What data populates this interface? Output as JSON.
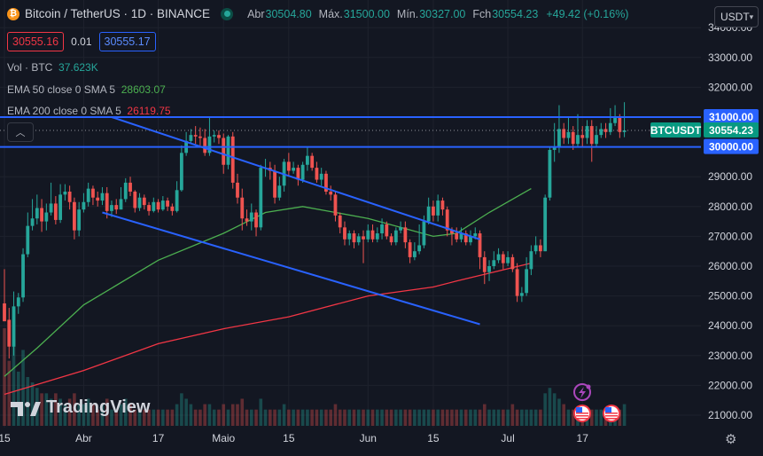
{
  "header": {
    "coin_glyph": "₿",
    "symbol": "Bitcoin / TetherUS · 1D · BINANCE",
    "ohlc": [
      {
        "label": "Abr",
        "value": "30504.80"
      },
      {
        "label": "Máx.",
        "value": "31500.00"
      },
      {
        "label": "Mín.",
        "value": "30327.00"
      },
      {
        "label": "Fch",
        "value": "30554.23"
      }
    ],
    "change": "+49.42 (+0.16%)"
  },
  "trade": {
    "sell": "30555.16",
    "spread": "0.01",
    "buy": "30555.17"
  },
  "indicators": {
    "volume": {
      "name": "Vol · BTC",
      "value": "37.623K",
      "color": "#26a69a"
    },
    "ema50": {
      "name": "EMA 50 close 0 SMA 5",
      "value": "28603.07",
      "color": "#4caf50"
    },
    "ema200": {
      "name": "EMA 200 close 0 SMA 5",
      "value": "26119.75",
      "color": "#f23645"
    }
  },
  "currency_selector": {
    "value": "USDT"
  },
  "branding": {
    "logo_text": "TradingView"
  },
  "chart_data": {
    "type": "candlestick",
    "y_axis": {
      "ticks": [
        "34000.00",
        "33000.00",
        "32000.00",
        "31000.00",
        "30000.00",
        "29000.00",
        "28000.00",
        "27000.00",
        "26000.00",
        "25000.00",
        "24000.00",
        "23000.00",
        "22000.00",
        "21000.00"
      ],
      "range": [
        20700,
        34100
      ]
    },
    "x_axis": {
      "ticks": [
        "15",
        "Abr",
        "17",
        "Maio",
        "15",
        "Jun",
        "15",
        "Jul",
        "17"
      ],
      "tick_dates": [
        "2023-03-15",
        "2023-04-01",
        "2023-04-17",
        "2023-05-01",
        "2023-05-15",
        "2023-06-01",
        "2023-06-15",
        "2023-07-01",
        "2023-07-17"
      ]
    },
    "dates": [
      "2023-03-15",
      "2023-07-06"
    ],
    "horizontal_levels": [
      31000,
      30000
    ],
    "price_labels": [
      {
        "text": "31000.00",
        "kind": "level"
      },
      {
        "text": "BTCUSDT",
        "kind": "symbol"
      },
      {
        "text": "30554.23",
        "kind": "last"
      },
      {
        "text": "30000.00",
        "kind": "level"
      }
    ],
    "trend_channel": [
      {
        "from": {
          "date": "2023-04-07",
          "value": 31000
        },
        "to": {
          "date": "2023-06-25",
          "value": 26900
        }
      },
      {
        "from": {
          "date": "2023-04-05",
          "value": 27800
        },
        "to": {
          "date": "2023-06-25",
          "value": 24050
        }
      }
    ],
    "ohlc": [
      [
        24750,
        24150,
        25900,
        24200
      ],
      [
        24200,
        23300,
        24600,
        22900
      ],
      [
        23300,
        24650,
        25150,
        23000
      ],
      [
        24650,
        24950,
        25100,
        24400
      ],
      [
        24950,
        26400,
        26600,
        24800
      ],
      [
        26400,
        27350,
        27800,
        26300
      ],
      [
        27350,
        27600,
        28250,
        27200
      ],
      [
        27600,
        27950,
        28400,
        27400
      ],
      [
        27950,
        27500,
        28250,
        27150
      ],
      [
        27500,
        27800,
        28100,
        27200
      ],
      [
        27800,
        28100,
        28800,
        27700
      ],
      [
        28100,
        27550,
        28350,
        27400
      ],
      [
        27550,
        28400,
        28750,
        27450
      ],
      [
        28400,
        28500,
        28750,
        28200
      ],
      [
        28500,
        28150,
        28700,
        27900
      ],
      [
        28150,
        27200,
        28300,
        26900
      ],
      [
        27200,
        27900,
        28150,
        27000
      ],
      [
        27900,
        28150,
        28450,
        27800
      ],
      [
        28150,
        28600,
        28800,
        28000
      ],
      [
        28600,
        28300,
        28700,
        28050
      ],
      [
        28300,
        28200,
        28500,
        28000
      ],
      [
        28200,
        28450,
        28650,
        28050
      ],
      [
        28450,
        27850,
        28650,
        27600
      ],
      [
        27850,
        28050,
        28200,
        27650
      ],
      [
        28050,
        27900,
        28250,
        27750
      ],
      [
        27900,
        28250,
        28650,
        27900
      ],
      [
        28250,
        28800,
        28950,
        28150
      ],
      [
        28800,
        28500,
        29000,
        28350
      ],
      [
        28500,
        27950,
        28550,
        27800
      ],
      [
        27950,
        28300,
        28450,
        27850
      ],
      [
        28300,
        28050,
        28400,
        27900
      ],
      [
        28050,
        27850,
        28150,
        27700
      ],
      [
        27850,
        28150,
        28300,
        27800
      ],
      [
        28150,
        27900,
        28250,
        27800
      ],
      [
        27900,
        28200,
        28350,
        27850
      ],
      [
        28200,
        28000,
        28300,
        27850
      ],
      [
        28000,
        27850,
        28100,
        27700
      ],
      [
        27850,
        28550,
        28850,
        27800
      ],
      [
        28550,
        29800,
        30050,
        28500
      ],
      [
        29800,
        30200,
        30500,
        29700
      ],
      [
        30200,
        30400,
        30600,
        30100
      ],
      [
        30400,
        30350,
        30700,
        30100
      ],
      [
        30350,
        30300,
        30650,
        30050
      ],
      [
        30300,
        29800,
        30600,
        29700
      ],
      [
        29800,
        30350,
        31000,
        29700
      ],
      [
        30350,
        30400,
        30550,
        30150
      ],
      [
        30400,
        30300,
        30550,
        30100
      ],
      [
        30300,
        29400,
        30450,
        29100
      ],
      [
        29400,
        30350,
        30400,
        29250
      ],
      [
        30350,
        28800,
        30500,
        28600
      ],
      [
        28800,
        28300,
        29100,
        28100
      ],
      [
        28300,
        27600,
        28600,
        27200
      ],
      [
        27600,
        27500,
        27900,
        27350
      ],
      [
        27500,
        27800,
        28100,
        27200
      ],
      [
        27800,
        27300,
        27900,
        27000
      ],
      [
        27300,
        29300,
        29400,
        27200
      ],
      [
        29300,
        29300,
        29600,
        29000
      ],
      [
        29300,
        29200,
        29500,
        28900
      ],
      [
        29200,
        28300,
        29400,
        28100
      ],
      [
        28300,
        28700,
        29000,
        28200
      ],
      [
        28700,
        29500,
        29600,
        28500
      ],
      [
        29500,
        29200,
        29800,
        29000
      ],
      [
        29200,
        29300,
        29500,
        29100
      ],
      [
        29300,
        28900,
        29400,
        28700
      ],
      [
        28900,
        29400,
        29500,
        28800
      ],
      [
        29400,
        29700,
        30000,
        29200
      ],
      [
        29700,
        29300,
        29800,
        29200
      ],
      [
        29300,
        28900,
        29500,
        28800
      ],
      [
        28900,
        29100,
        29300,
        28700
      ],
      [
        29100,
        28500,
        29200,
        28400
      ],
      [
        28500,
        28400,
        28700,
        28200
      ],
      [
        28400,
        27700,
        28500,
        27500
      ],
      [
        27700,
        27300,
        27800,
        27100
      ],
      [
        27300,
        26900,
        27500,
        26700
      ],
      [
        26900,
        27100,
        27200,
        26700
      ],
      [
        27100,
        26800,
        27200,
        26600
      ],
      [
        26800,
        27000,
        27100,
        26700
      ],
      [
        27000,
        26900,
        27200,
        26100
      ],
      [
        26900,
        27200,
        27400,
        26800
      ],
      [
        27200,
        26900,
        27400,
        26800
      ],
      [
        26900,
        27100,
        27300,
        26800
      ],
      [
        27100,
        27400,
        27600,
        26900
      ],
      [
        27400,
        27000,
        27500,
        26900
      ],
      [
        27000,
        26800,
        27100,
        26700
      ],
      [
        26800,
        27200,
        27300,
        26700
      ],
      [
        27200,
        27300,
        27500,
        27100
      ],
      [
        27300,
        26800,
        27500,
        26600
      ],
      [
        26800,
        26300,
        26900,
        26100
      ],
      [
        26300,
        26500,
        26800,
        26200
      ],
      [
        26500,
        26700,
        27400,
        26400
      ],
      [
        26700,
        27500,
        27700,
        26600
      ],
      [
        27500,
        28000,
        28300,
        27400
      ],
      [
        28000,
        27700,
        28200,
        27500
      ],
      [
        27700,
        28200,
        28400,
        27500
      ],
      [
        28200,
        27900,
        28300,
        27700
      ],
      [
        27900,
        27200,
        28000,
        27000
      ],
      [
        27200,
        27100,
        27300,
        26700
      ],
      [
        27100,
        26900,
        27300,
        26800
      ],
      [
        26900,
        27100,
        27300,
        26800
      ],
      [
        27100,
        26800,
        27200,
        26700
      ],
      [
        26800,
        27000,
        27200,
        26700
      ],
      [
        27000,
        27100,
        27300,
        26900
      ],
      [
        27100,
        26300,
        27200,
        25900
      ],
      [
        26300,
        25800,
        26500,
        25400
      ],
      [
        25800,
        26000,
        26200,
        25500
      ],
      [
        26000,
        26200,
        26500,
        25900
      ],
      [
        26200,
        26400,
        26600,
        26100
      ],
      [
        26400,
        26100,
        26500,
        25900
      ],
      [
        26100,
        26300,
        26500,
        26000
      ],
      [
        26300,
        25900,
        26400,
        25800
      ],
      [
        25900,
        25000,
        26100,
        24800
      ],
      [
        25000,
        25100,
        25300,
        24800
      ],
      [
        25100,
        25900,
        26300,
        25000
      ],
      [
        25900,
        26500,
        26700,
        25700
      ],
      [
        26500,
        26700,
        27000,
        26400
      ],
      [
        26700,
        26500,
        26900,
        26300
      ],
      [
        26500,
        28300,
        28400,
        26500
      ],
      [
        28300,
        29900,
        30000,
        28200
      ],
      [
        29900,
        30000,
        30800,
        29500
      ],
      [
        30000,
        30600,
        31400,
        29800
      ],
      [
        30600,
        30300,
        30800,
        30100
      ],
      [
        30300,
        30500,
        31000,
        30100
      ],
      [
        30500,
        30100,
        30700,
        29900
      ],
      [
        30100,
        30400,
        31100,
        30000
      ],
      [
        30400,
        30300,
        30700,
        30000
      ],
      [
        30300,
        30700,
        30900,
        30100
      ],
      [
        30700,
        30100,
        30900,
        29500
      ],
      [
        30100,
        30400,
        30700,
        30000
      ],
      [
        30400,
        30600,
        30800,
        30300
      ],
      [
        30600,
        30500,
        30800,
        30300
      ],
      [
        30500,
        30800,
        31300,
        30400
      ],
      [
        30800,
        31000,
        31400,
        30700
      ],
      [
        31000,
        30500,
        31100,
        30300
      ],
      [
        30500,
        30554,
        31500,
        30327
      ]
    ],
    "volume": [
      18,
      12,
      16,
      10,
      14,
      9,
      8,
      7,
      6,
      6,
      5,
      6,
      5,
      4,
      5,
      6,
      4,
      4,
      5,
      4,
      3,
      4,
      5,
      3,
      3,
      4,
      5,
      4,
      3,
      3,
      3,
      3,
      3,
      3,
      3,
      3,
      3,
      4,
      6,
      5,
      4,
      3,
      3,
      4,
      4,
      3,
      3,
      4,
      3,
      4,
      4,
      5,
      3,
      3,
      3,
      5,
      3,
      3,
      3,
      3,
      4,
      3,
      3,
      3,
      3,
      3,
      3,
      3,
      3,
      3,
      3,
      4,
      3,
      3,
      3,
      3,
      3,
      3,
      3,
      3,
      3,
      3,
      3,
      3,
      3,
      3,
      3,
      3,
      3,
      3,
      3,
      3,
      3,
      3,
      3,
      3,
      3,
      3,
      3,
      3,
      3,
      3,
      3,
      4,
      3,
      3,
      3,
      3,
      3,
      4,
      3,
      3,
      3,
      3,
      3,
      3,
      6,
      7,
      6,
      5,
      4,
      3,
      3,
      3,
      3,
      3,
      3,
      3,
      3,
      3,
      3,
      3,
      3,
      4
    ],
    "ema50": [
      {
        "date": "2023-03-15",
        "value": 22300
      },
      {
        "date": "2023-03-22",
        "value": 23250
      },
      {
        "date": "2023-04-01",
        "value": 24700
      },
      {
        "date": "2023-04-17",
        "value": 26200
      },
      {
        "date": "2023-05-01",
        "value": 27100
      },
      {
        "date": "2023-05-10",
        "value": 27800
      },
      {
        "date": "2023-05-18",
        "value": 28000
      },
      {
        "date": "2023-06-01",
        "value": 27600
      },
      {
        "date": "2023-06-15",
        "value": 27000
      },
      {
        "date": "2023-06-20",
        "value": 27100
      },
      {
        "date": "2023-06-27",
        "value": 27800
      },
      {
        "date": "2023-07-06",
        "value": 28600
      }
    ],
    "ema200": [
      {
        "date": "2023-03-15",
        "value": 21700
      },
      {
        "date": "2023-04-01",
        "value": 22500
      },
      {
        "date": "2023-04-17",
        "value": 23400
      },
      {
        "date": "2023-05-01",
        "value": 23900
      },
      {
        "date": "2023-05-15",
        "value": 24300
      },
      {
        "date": "2023-06-01",
        "value": 25000
      },
      {
        "date": "2023-06-15",
        "value": 25300
      },
      {
        "date": "2023-06-20",
        "value": 25500
      },
      {
        "date": "2023-07-06",
        "value": 26100
      }
    ]
  },
  "colors": {
    "up": "#26a69a",
    "down": "#ef5350",
    "level_line": "#2962ff",
    "channel": "#2962ff",
    "background": "#131722",
    "grid": "#1e222d"
  }
}
